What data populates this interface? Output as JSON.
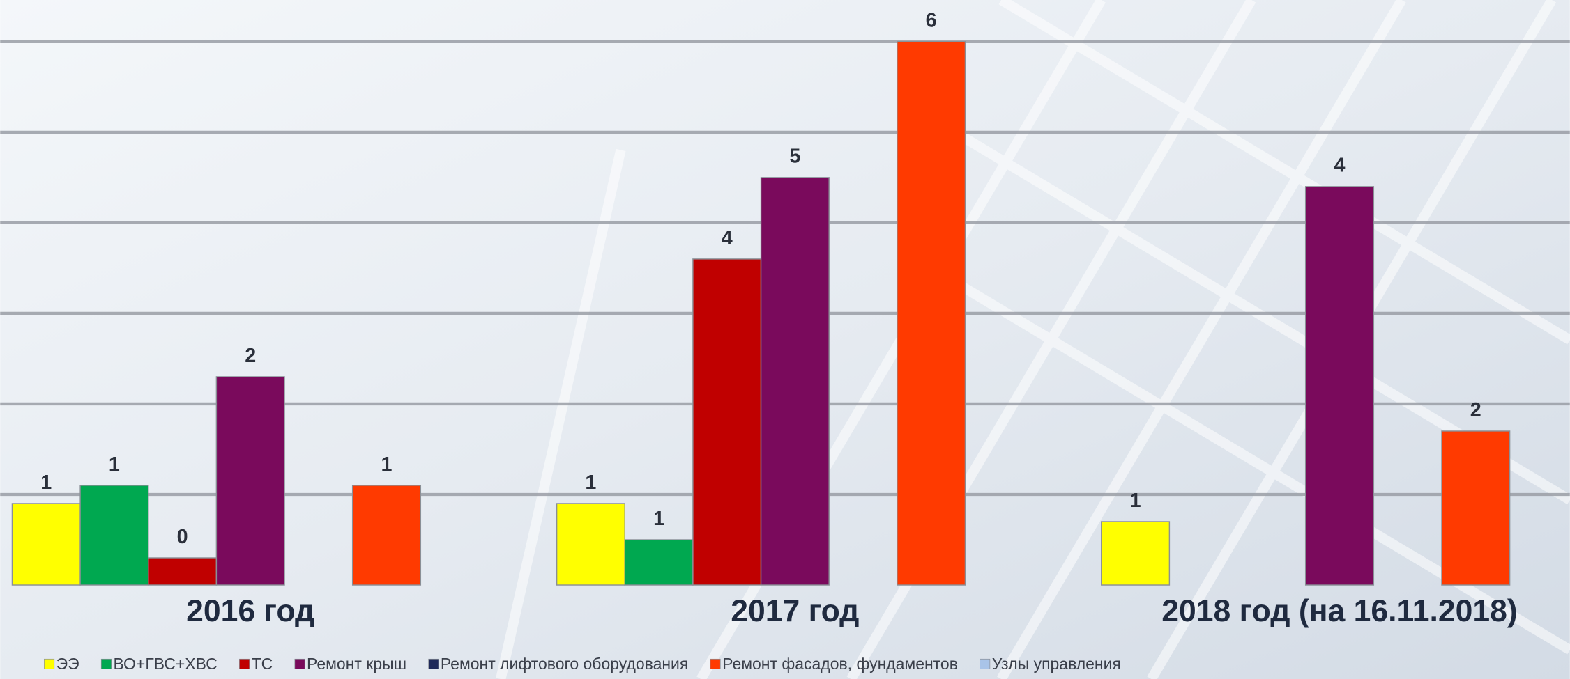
{
  "chart_data": {
    "type": "bar",
    "categories": [
      "2016 год",
      "2017 год",
      "2018 год (на 16.11.2018)"
    ],
    "series": [
      {
        "name": "ЭЭ",
        "color": "#ffff00",
        "values": [
          0.9,
          0.9,
          0.7
        ],
        "value_labels": [
          "1",
          "1",
          "1"
        ]
      },
      {
        "name": "ВО+ГВС+ХВС",
        "color": "#00a850",
        "values": [
          1.1,
          0.5,
          null
        ],
        "value_labels": [
          "1",
          "1",
          null
        ]
      },
      {
        "name": "ТС",
        "color": "#c00000",
        "values": [
          0.3,
          3.6,
          null
        ],
        "value_labels": [
          "0",
          "4",
          null
        ]
      },
      {
        "name": "Ремонт крыш",
        "color": "#7a0a5c",
        "values": [
          2.3,
          4.5,
          4.4
        ],
        "value_labels": [
          "2",
          "5",
          "4"
        ]
      },
      {
        "name": "Ремонт лифтового оборудования",
        "color": "#1f2a5a",
        "values": [
          null,
          null,
          null
        ],
        "value_labels": [
          null,
          null,
          null
        ]
      },
      {
        "name": "Ремонт фасадов, фундаментов",
        "color": "#ff3a00",
        "values": [
          1.1,
          6.0,
          1.7
        ],
        "value_labels": [
          "1",
          "6",
          "2"
        ]
      },
      {
        "name": "Узлы управления",
        "color": "#a9c4e8",
        "values": [
          null,
          null,
          null
        ],
        "value_labels": [
          null,
          null,
          null
        ]
      }
    ],
    "ylim": [
      0,
      6.46
    ],
    "yticks": [
      1,
      2,
      3,
      4,
      5,
      6
    ],
    "grid": true,
    "legend": "bottom"
  }
}
